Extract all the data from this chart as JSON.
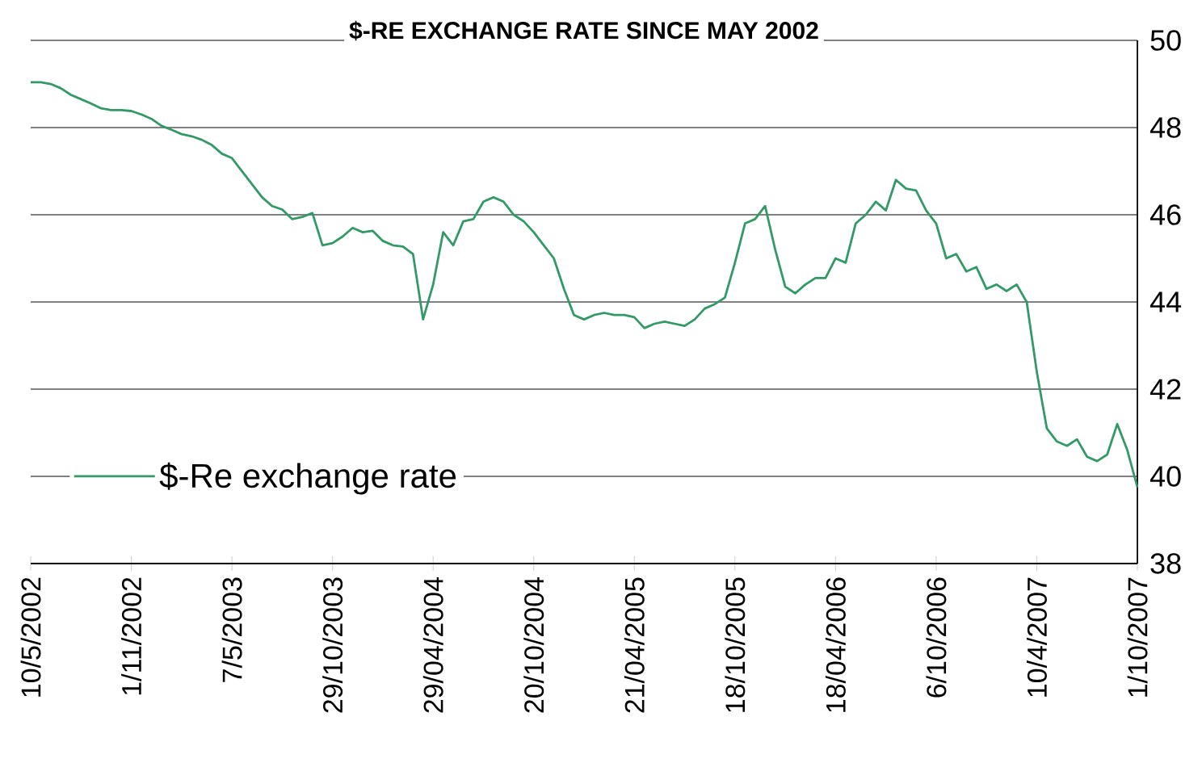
{
  "chart_data": {
    "type": "line",
    "title": "$-RE EXCHANGE RATE SINCE MAY 2002",
    "categories": [
      "10/5/2002",
      null,
      null,
      null,
      null,
      null,
      null,
      null,
      null,
      null,
      "1/11/2002",
      null,
      null,
      null,
      null,
      null,
      null,
      null,
      null,
      null,
      "7/5/2003",
      null,
      null,
      null,
      null,
      null,
      null,
      null,
      null,
      null,
      "29/10/2003",
      null,
      null,
      null,
      null,
      null,
      null,
      null,
      null,
      null,
      "29/04/2004",
      null,
      null,
      null,
      null,
      null,
      null,
      null,
      null,
      null,
      "20/10/2004",
      null,
      null,
      null,
      null,
      null,
      null,
      null,
      null,
      null,
      "21/04/2005",
      null,
      null,
      null,
      null,
      null,
      null,
      null,
      null,
      null,
      "18/10/2005",
      null,
      null,
      null,
      null,
      null,
      null,
      null,
      null,
      null,
      "18/04/2006",
      null,
      null,
      null,
      null,
      null,
      null,
      null,
      null,
      null,
      "6/10/2006",
      null,
      null,
      null,
      null,
      null,
      null,
      null,
      null,
      null,
      "10/4/2007",
      null,
      null,
      null,
      null,
      null,
      null,
      null,
      null,
      null,
      "1/10/2007"
    ],
    "series": [
      {
        "name": "$-Re exchange rate",
        "color": "#339966",
        "values": [
          49.04,
          49.04,
          49.0,
          48.9,
          48.75,
          48.65,
          48.55,
          48.44,
          48.4,
          48.4,
          48.38,
          48.3,
          48.2,
          48.04,
          47.95,
          47.85,
          47.8,
          47.72,
          47.6,
          47.4,
          47.3,
          47.0,
          46.7,
          46.4,
          46.2,
          46.12,
          45.9,
          45.95,
          46.04,
          45.3,
          45.35,
          45.5,
          45.7,
          45.6,
          45.63,
          45.4,
          45.3,
          45.27,
          45.1,
          43.6,
          44.4,
          45.6,
          45.3,
          45.85,
          45.9,
          46.3,
          46.4,
          46.3,
          46.0,
          45.85,
          45.6,
          45.3,
          45.0,
          44.3,
          43.7,
          43.6,
          43.7,
          43.75,
          43.7,
          43.7,
          43.65,
          43.4,
          43.5,
          43.55,
          43.5,
          43.45,
          43.6,
          43.85,
          43.95,
          44.1,
          44.9,
          45.8,
          45.9,
          46.2,
          45.2,
          44.35,
          44.2,
          44.4,
          44.55,
          44.55,
          45.0,
          44.9,
          45.8,
          46.0,
          46.3,
          46.1,
          46.8,
          46.6,
          46.56,
          46.1,
          45.8,
          45.0,
          45.1,
          44.7,
          44.8,
          44.3,
          44.4,
          44.25,
          44.4,
          44.0,
          42.4,
          41.1,
          40.8,
          40.7,
          40.85,
          40.45,
          40.35,
          40.5,
          41.2,
          40.6,
          39.75
        ]
      }
    ],
    "ylim": [
      38,
      50
    ],
    "yticks": [
      38,
      40,
      42,
      44,
      46,
      48,
      50
    ],
    "grid": "y",
    "legend": "bottom left"
  }
}
